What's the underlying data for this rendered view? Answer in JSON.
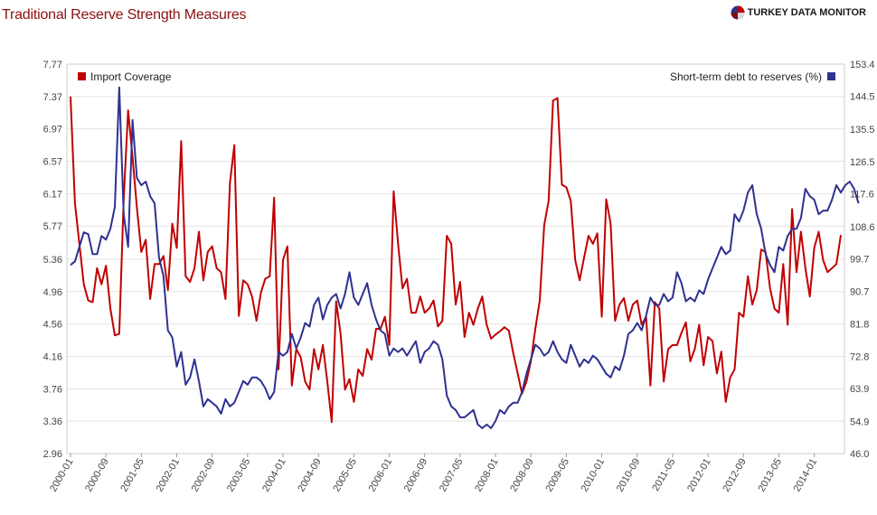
{
  "page": {
    "title": "Traditional Reserve Strength Measures",
    "brand": "TURKEY DATA MONITOR"
  },
  "chart_data": {
    "type": "line",
    "title": "Traditional Reserve Strength Measures",
    "xlabel": "",
    "ylabel_left": "",
    "ylabel_right": "",
    "x_tick_labels": [
      "2000-01",
      "2000-09",
      "2001-05",
      "2002-01",
      "2002-09",
      "2003-05",
      "2004-01",
      "2004-09",
      "2005-05",
      "2006-01",
      "2006-09",
      "2007-05",
      "2008-01",
      "2008-09",
      "2009-05",
      "2010-01",
      "2010-09",
      "2011-05",
      "2012-01",
      "2012-09",
      "2013-05",
      "2014-01"
    ],
    "y_left_ticks": [
      "2.96",
      "3.36",
      "3.76",
      "4.16",
      "4.56",
      "4.96",
      "5.36",
      "5.77",
      "6.17",
      "6.57",
      "6.97",
      "7.37",
      "7.77"
    ],
    "y_right_ticks": [
      "46.0",
      "54.9",
      "63.9",
      "72.8",
      "81.8",
      "90.7",
      "99.7",
      "108.6",
      "117.6",
      "126.5",
      "135.5",
      "144.5",
      "153.4"
    ],
    "ylim_left": [
      2.96,
      7.77
    ],
    "ylim_right": [
      46.0,
      153.4
    ],
    "legend_left": "top-left",
    "legend_right": "top-right",
    "grid": "horizontal",
    "series": [
      {
        "name": "Import Coverage",
        "axis": "left",
        "color": "#c00000",
        "start": "2000-01",
        "values": [
          7.37,
          6.05,
          5.55,
          5.05,
          4.85,
          4.83,
          5.25,
          5.05,
          5.28,
          4.75,
          4.42,
          4.44,
          6.1,
          7.2,
          6.62,
          6.0,
          5.45,
          5.6,
          4.87,
          5.3,
          5.3,
          5.4,
          4.98,
          5.8,
          5.5,
          6.82,
          5.15,
          5.08,
          5.25,
          5.7,
          5.1,
          5.45,
          5.52,
          5.25,
          5.2,
          4.87,
          6.3,
          6.77,
          4.66,
          5.1,
          5.05,
          4.9,
          4.6,
          4.95,
          5.12,
          5.15,
          6.12,
          4.0,
          5.35,
          5.52,
          3.8,
          4.25,
          4.15,
          3.85,
          3.75,
          4.25,
          4.0,
          4.3,
          3.85,
          3.35,
          4.84,
          4.44,
          3.75,
          3.88,
          3.6,
          4.0,
          3.92,
          4.25,
          4.12,
          4.5,
          4.5,
          4.65,
          4.3,
          6.2,
          5.55,
          5.0,
          5.12,
          4.7,
          4.7,
          4.9,
          4.7,
          4.75,
          4.85,
          4.53,
          4.6,
          5.65,
          5.55,
          4.8,
          5.08,
          4.4,
          4.7,
          4.55,
          4.75,
          4.9,
          4.55,
          4.38,
          4.43,
          4.47,
          4.52,
          4.48,
          4.2,
          3.95,
          3.7,
          3.85,
          4.1,
          4.5,
          4.85,
          5.78,
          6.08,
          7.32,
          7.35,
          6.28,
          6.25,
          6.08,
          5.35,
          5.1,
          5.38,
          5.65,
          5.55,
          5.68,
          4.65,
          6.1,
          5.8,
          4.6,
          4.8,
          4.88,
          4.6,
          4.8,
          4.85,
          4.55,
          4.65,
          3.8,
          4.83,
          4.75,
          3.85,
          4.25,
          4.3,
          4.3,
          4.45,
          4.58,
          4.1,
          4.25,
          4.55,
          4.05,
          4.4,
          4.35,
          3.95,
          4.22,
          3.6,
          3.9,
          4.0,
          4.7,
          4.65,
          5.15,
          4.8,
          4.98,
          5.48,
          5.45,
          5.0,
          4.75,
          4.7,
          5.3,
          4.55,
          5.98,
          5.2,
          5.7,
          5.25,
          4.9,
          5.5,
          5.7,
          5.35,
          5.2,
          5.25,
          5.3,
          5.66
        ]
      },
      {
        "name": "Short-term debt to reserves (%)",
        "axis": "right",
        "color": "#2e3190",
        "start": "2000-01",
        "values": [
          98,
          99,
          103,
          107,
          106.5,
          101,
          101,
          106,
          105,
          108,
          114,
          147,
          112,
          103,
          138,
          122,
          120,
          121,
          117,
          115,
          100,
          95,
          80,
          78,
          70,
          74,
          65,
          67,
          72,
          66,
          59,
          61,
          60,
          59,
          57,
          61,
          59,
          60,
          63,
          66,
          65,
          67,
          67,
          66,
          64,
          61,
          63,
          74,
          73,
          74,
          79,
          75,
          78,
          82,
          81,
          87,
          89,
          83,
          87,
          89,
          90,
          86,
          90,
          96,
          89,
          87,
          90,
          93,
          87,
          83,
          80,
          79,
          73,
          75,
          74,
          75,
          73,
          75,
          77,
          71,
          74,
          75,
          77,
          76,
          72,
          62,
          59,
          58,
          56,
          56,
          57,
          58,
          54,
          53,
          54,
          53,
          55,
          58,
          57,
          59,
          60,
          60,
          63,
          68,
          72,
          76,
          75,
          73,
          74,
          77,
          74,
          72,
          71,
          76,
          73,
          70,
          72,
          71,
          73,
          72,
          70,
          68,
          67,
          70,
          69,
          73,
          79,
          80,
          82,
          80,
          84,
          89,
          87,
          87,
          90,
          88,
          89,
          96,
          93,
          88,
          89,
          88,
          91,
          90,
          94,
          97,
          100,
          103,
          101,
          102,
          112,
          110,
          113,
          118,
          120,
          112,
          108,
          101,
          98,
          96,
          103,
          102,
          106,
          108,
          108,
          111,
          119,
          117,
          116,
          112,
          113,
          113,
          116,
          120,
          118,
          120,
          121,
          119,
          115
        ]
      }
    ]
  }
}
